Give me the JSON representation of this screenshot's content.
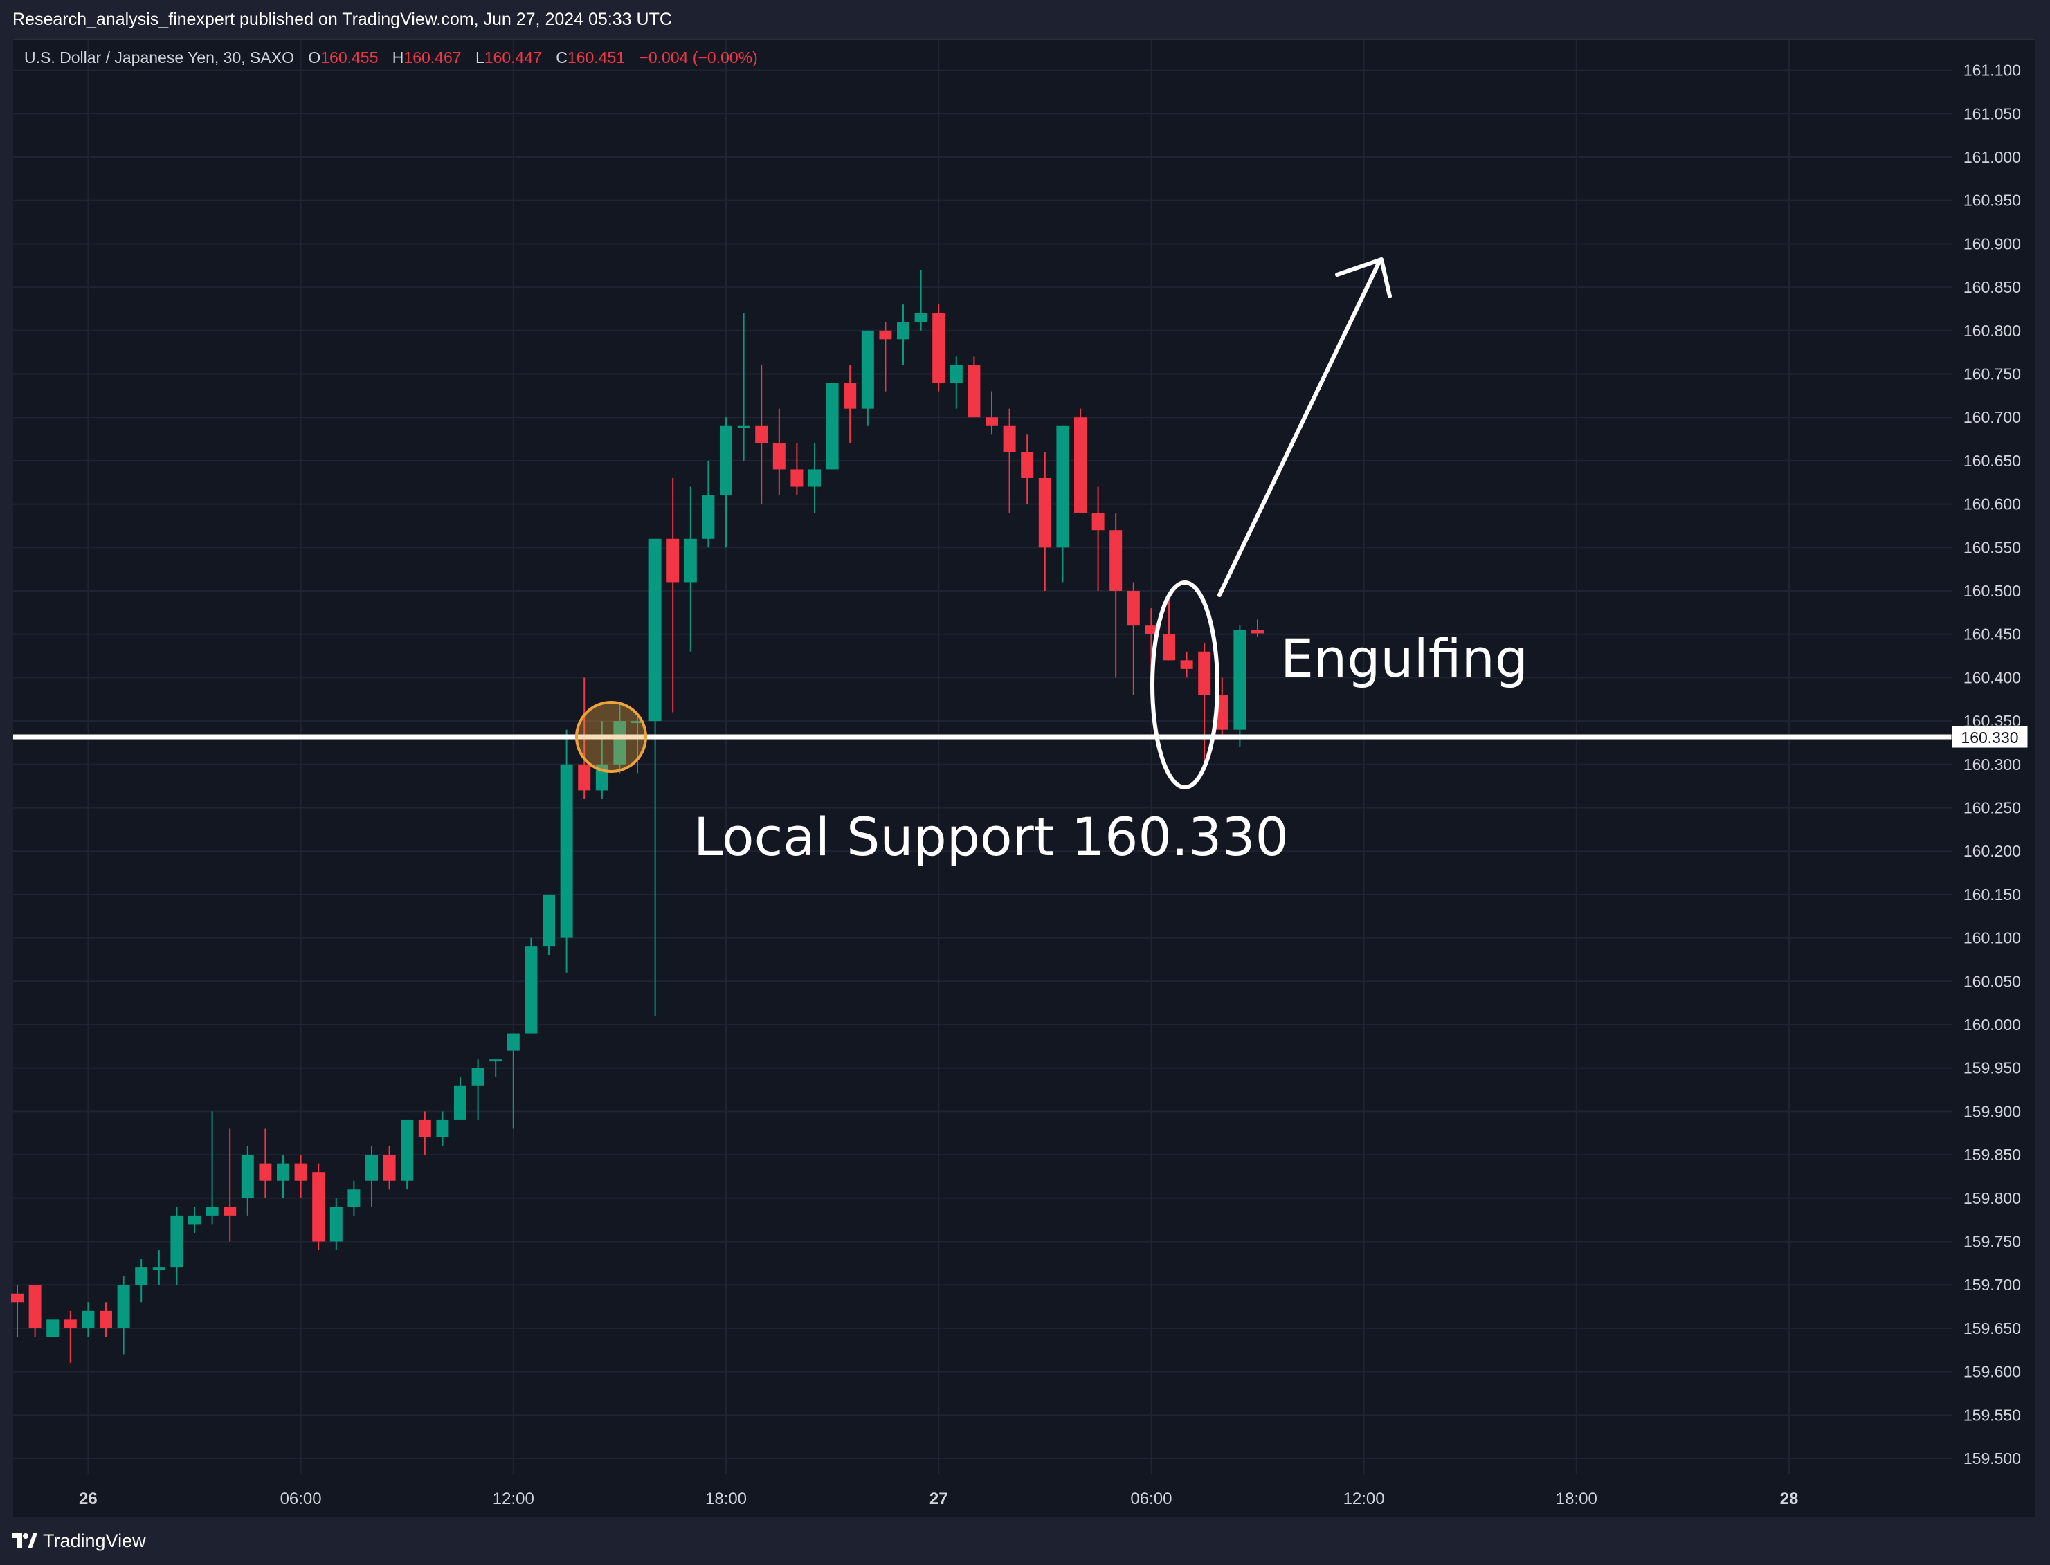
{
  "header": {
    "published": "Research_analysis_finexpert published on TradingView.com, Jun 27, 2024 05:33 UTC"
  },
  "legend": {
    "symbol": "U.S. Dollar / Japanese Yen, 30, SAXO",
    "o_label": "O",
    "o": "160.455",
    "h_label": "H",
    "h": "160.467",
    "l_label": "L",
    "l": "160.447",
    "c_label": "C",
    "c": "160.451",
    "change": "−0.004 (−0.00%)"
  },
  "footer": {
    "brand": "TradingView"
  },
  "colors": {
    "up": "#089981",
    "down": "#f23645",
    "background": "#131722",
    "grid": "#1f2433",
    "axis_text": "#d1d4dc",
    "support_line": "#ffffff",
    "highlight_circle": "#f0a23a"
  },
  "chart_data": {
    "type": "candlestick",
    "interval": "30",
    "y_axis_side": "right",
    "ylim": [
      159.48,
      161.12
    ],
    "y_ticks": [
      "161.100",
      "161.050",
      "161.000",
      "160.950",
      "160.900",
      "160.850",
      "160.800",
      "160.750",
      "160.700",
      "160.650",
      "160.600",
      "160.550",
      "160.500",
      "160.450",
      "160.400",
      "160.350",
      "160.300",
      "160.250",
      "160.200",
      "160.150",
      "160.100",
      "160.050",
      "160.000",
      "159.950",
      "159.900",
      "159.850",
      "159.800",
      "159.750",
      "159.700",
      "159.650",
      "159.600",
      "159.550",
      "159.500"
    ],
    "x_ticks": [
      {
        "label": "26",
        "bold": true,
        "index": 4
      },
      {
        "label": "06:00",
        "bold": false,
        "index": 16
      },
      {
        "label": "12:00",
        "bold": false,
        "index": 28
      },
      {
        "label": "18:00",
        "bold": false,
        "index": 40
      },
      {
        "label": "27",
        "bold": true,
        "index": 52
      },
      {
        "label": "06:00",
        "bold": false,
        "index": 64
      },
      {
        "label": "12:00",
        "bold": false,
        "index": 76
      },
      {
        "label": "18:00",
        "bold": false,
        "index": 88
      },
      {
        "label": "28",
        "bold": true,
        "index": 100
      }
    ],
    "grid": true,
    "price_label": "160.330",
    "candles": [
      [
        159.69,
        159.7,
        159.64,
        159.68
      ],
      [
        159.7,
        159.7,
        159.64,
        159.65
      ],
      [
        159.64,
        159.66,
        159.64,
        159.66
      ],
      [
        159.66,
        159.67,
        159.61,
        159.65
      ],
      [
        159.65,
        159.68,
        159.64,
        159.67
      ],
      [
        159.67,
        159.68,
        159.64,
        159.65
      ],
      [
        159.65,
        159.71,
        159.62,
        159.7
      ],
      [
        159.7,
        159.73,
        159.68,
        159.72
      ],
      [
        159.72,
        159.74,
        159.7,
        159.72
      ],
      [
        159.72,
        159.79,
        159.7,
        159.78
      ],
      [
        159.77,
        159.79,
        159.76,
        159.78
      ],
      [
        159.78,
        159.9,
        159.77,
        159.79
      ],
      [
        159.79,
        159.88,
        159.75,
        159.78
      ],
      [
        159.8,
        159.86,
        159.78,
        159.85
      ],
      [
        159.84,
        159.88,
        159.8,
        159.82
      ],
      [
        159.82,
        159.85,
        159.8,
        159.84
      ],
      [
        159.84,
        159.85,
        159.8,
        159.82
      ],
      [
        159.83,
        159.84,
        159.74,
        159.75
      ],
      [
        159.75,
        159.8,
        159.74,
        159.79
      ],
      [
        159.79,
        159.82,
        159.78,
        159.81
      ],
      [
        159.82,
        159.86,
        159.79,
        159.85
      ],
      [
        159.85,
        159.86,
        159.81,
        159.82
      ],
      [
        159.82,
        159.89,
        159.81,
        159.89
      ],
      [
        159.89,
        159.9,
        159.85,
        159.87
      ],
      [
        159.87,
        159.9,
        159.86,
        159.89
      ],
      [
        159.89,
        159.94,
        159.89,
        159.93
      ],
      [
        159.93,
        159.96,
        159.89,
        159.95
      ],
      [
        159.96,
        159.96,
        159.94,
        159.96
      ],
      [
        159.97,
        159.99,
        159.88,
        159.99
      ],
      [
        159.99,
        160.1,
        159.99,
        160.09
      ],
      [
        160.09,
        160.15,
        160.08,
        160.15
      ],
      [
        160.1,
        160.34,
        160.06,
        160.3
      ],
      [
        160.3,
        160.4,
        160.26,
        160.27
      ],
      [
        160.27,
        160.35,
        160.26,
        160.3
      ],
      [
        160.3,
        160.37,
        160.29,
        160.35
      ],
      [
        160.35,
        160.36,
        160.29,
        160.35
      ],
      [
        160.35,
        160.56,
        160.01,
        160.56
      ],
      [
        160.56,
        160.63,
        160.36,
        160.51
      ],
      [
        160.51,
        160.62,
        160.43,
        160.56
      ],
      [
        160.56,
        160.65,
        160.55,
        160.61
      ],
      [
        160.61,
        160.7,
        160.55,
        160.69
      ],
      [
        160.69,
        160.82,
        160.65,
        160.69
      ],
      [
        160.69,
        160.76,
        160.6,
        160.67
      ],
      [
        160.67,
        160.71,
        160.61,
        160.64
      ],
      [
        160.64,
        160.67,
        160.61,
        160.62
      ],
      [
        160.62,
        160.67,
        160.59,
        160.64
      ],
      [
        160.64,
        160.74,
        160.64,
        160.74
      ],
      [
        160.74,
        160.76,
        160.67,
        160.71
      ],
      [
        160.71,
        160.8,
        160.69,
        160.8
      ],
      [
        160.8,
        160.81,
        160.73,
        160.79
      ],
      [
        160.79,
        160.83,
        160.76,
        160.81
      ],
      [
        160.81,
        160.87,
        160.8,
        160.82
      ],
      [
        160.82,
        160.83,
        160.73,
        160.74
      ],
      [
        160.74,
        160.77,
        160.71,
        160.76
      ],
      [
        160.76,
        160.77,
        160.7,
        160.7
      ],
      [
        160.7,
        160.73,
        160.68,
        160.69
      ],
      [
        160.69,
        160.71,
        160.59,
        160.66
      ],
      [
        160.66,
        160.68,
        160.6,
        160.63
      ],
      [
        160.63,
        160.66,
        160.5,
        160.55
      ],
      [
        160.55,
        160.69,
        160.51,
        160.69
      ],
      [
        160.7,
        160.71,
        160.59,
        160.59
      ],
      [
        160.59,
        160.62,
        160.5,
        160.57
      ],
      [
        160.57,
        160.59,
        160.4,
        160.5
      ],
      [
        160.5,
        160.51,
        160.38,
        160.46
      ],
      [
        160.46,
        160.48,
        160.41,
        160.45
      ],
      [
        160.45,
        160.49,
        160.42,
        160.42
      ],
      [
        160.42,
        160.43,
        160.4,
        160.41
      ],
      [
        160.43,
        160.44,
        160.3,
        160.38
      ],
      [
        160.38,
        160.4,
        160.33,
        160.34
      ],
      [
        160.34,
        160.46,
        160.32,
        160.455
      ],
      [
        160.455,
        160.467,
        160.447,
        160.451
      ]
    ]
  },
  "annotations": {
    "support_text": "Local Support 160.330",
    "engulfing_text": "Engulfing"
  }
}
